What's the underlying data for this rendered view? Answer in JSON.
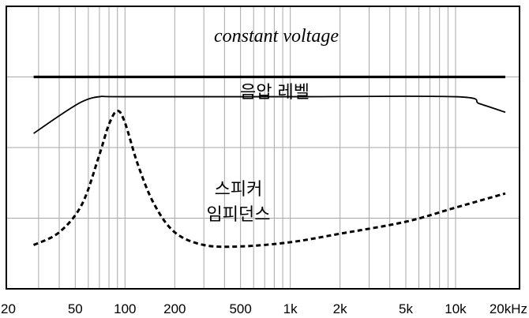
{
  "chart_data": {
    "type": "line",
    "title": "",
    "xlabel": "",
    "ylabel": "",
    "xscale": "log",
    "xlim": [
      20,
      20000
    ],
    "ylim": [
      0,
      4
    ],
    "grid": true,
    "x_tick_labels": [
      {
        "value": 20,
        "label": "20"
      },
      {
        "value": 50,
        "label": "50"
      },
      {
        "value": 100,
        "label": "100"
      },
      {
        "value": 200,
        "label": "200"
      },
      {
        "value": 500,
        "label": "500"
      },
      {
        "value": 1000,
        "label": "1k"
      },
      {
        "value": 2000,
        "label": "2k"
      },
      {
        "value": 5000,
        "label": "5k"
      },
      {
        "value": 10000,
        "label": "10k"
      },
      {
        "value": 20000,
        "label": "20kHz"
      }
    ],
    "series": [
      {
        "name": "constant voltage",
        "style": "thick-solid",
        "x": [
          28,
          20000
        ],
        "y": [
          3.0,
          3.0
        ]
      },
      {
        "name": "음압 레벨",
        "style": "solid",
        "x": [
          28,
          40,
          55,
          70,
          100,
          1000,
          10000,
          14000,
          20000
        ],
        "y": [
          2.2,
          2.45,
          2.65,
          2.72,
          2.72,
          2.72,
          2.72,
          2.62,
          2.5
        ]
      },
      {
        "name": "스피커 임피던스",
        "style": "dashed",
        "x": [
          28,
          40,
          55,
          70,
          80,
          90,
          100,
          120,
          150,
          200,
          300,
          500,
          1000,
          2000,
          5000,
          10000,
          20000
        ],
        "y": [
          0.62,
          0.8,
          1.2,
          1.9,
          2.33,
          2.52,
          2.35,
          1.75,
          1.2,
          0.8,
          0.62,
          0.6,
          0.66,
          0.78,
          0.95,
          1.15,
          1.35
        ]
      }
    ],
    "annotations": [
      {
        "text": "constant voltage",
        "series": 0
      },
      {
        "text": "음압 레벨",
        "series": 1
      },
      {
        "text_lines": [
          "스피커",
          "임피던스"
        ],
        "series": 2
      }
    ]
  }
}
